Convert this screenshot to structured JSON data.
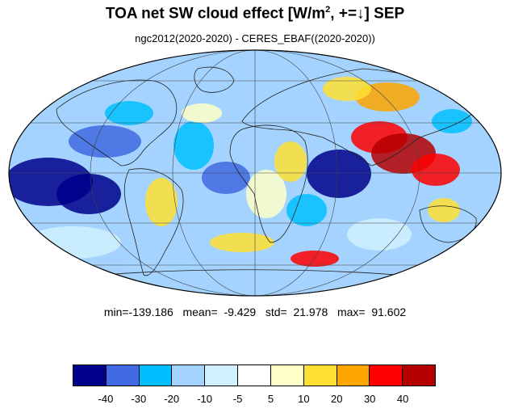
{
  "title": {
    "main": "TOA net SW cloud effect [W/m",
    "sup": "2",
    "rest": ", +=↓]  SEP"
  },
  "subtitle": "ngc2012(2020-2020) - CERES_EBAF((2020-2020))",
  "stats": {
    "text": "min=-139.186   mean=  -9.429   std=  21.978   max=  91.602"
  },
  "colorbar": {
    "colors": [
      "#00008b",
      "#4169e1",
      "#00bfff",
      "#a4d3ff",
      "#d0f0ff",
      "#ffffff",
      "#ffffc8",
      "#ffe033",
      "#ffa500",
      "#ff0000",
      "#b40000"
    ],
    "ticks": [
      "-40",
      "-30",
      "-20",
      "-10",
      "-5",
      "5",
      "10",
      "20",
      "30",
      "40"
    ]
  }
}
